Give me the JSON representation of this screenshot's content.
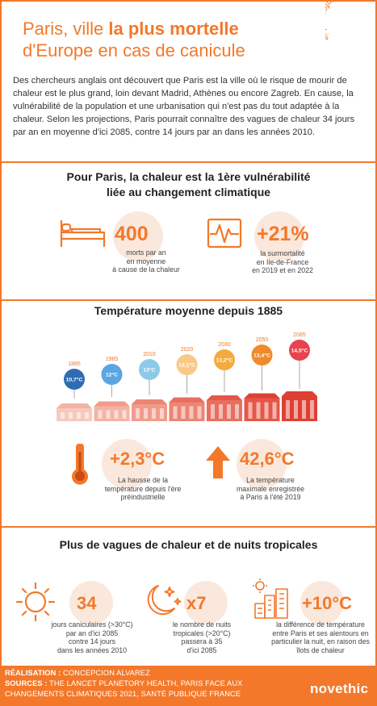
{
  "header": {
    "title_part1": "Paris, ville ",
    "title_bold": "la plus mortelle",
    "title_part2": "d'Europe en cas de canicule",
    "tag": "infographie",
    "intro": "Des chercheurs anglais ont découvert que Paris est la ville où le risque de mourir de chaleur est le plus grand, loin devant Madrid, Athènes ou encore Zagreb. En cause, la vulnérabilité de la population et une urbanisation qui n'est pas du tout adaptée à la chaleur. Selon les projections, Paris pourrait connaître des vagues de chaleur 34 jours par an en moyenne d'ici 2085, contre 14 jours par an dans les années 2010."
  },
  "section1": {
    "heading_line1": "Pour Paris, la chaleur est la 1ère vulnérabilité",
    "heading_line2": "liée au changement climatique",
    "stat1": {
      "value": "400",
      "caption": [
        "morts par an",
        "en moyenne",
        "à cause de la chaleur"
      ],
      "icon": "hospital-bed-icon"
    },
    "stat2": {
      "value": "+21%",
      "caption": [
        "la surmortalité",
        "en Ile-de-France",
        "en 2019 et en 2022"
      ],
      "icon": "heart-monitor-icon"
    }
  },
  "section2": {
    "heading": "Température moyenne depuis 1885",
    "timeline": [
      {
        "year": "1885",
        "temp": "10,7°C",
        "color": "#2e6db3"
      },
      {
        "year": "1985",
        "temp": "12°C",
        "color": "#5aa6e0"
      },
      {
        "year": "2010",
        "temp": "13°C",
        "color": "#8ccbe8"
      },
      {
        "year": "2020",
        "temp": "13,1°C",
        "color": "#f9c98a"
      },
      {
        "year": "2030",
        "temp": "13,2°C",
        "color": "#f5aa3f"
      },
      {
        "year": "2050",
        "temp": "13,4°C",
        "color": "#f08a2a"
      },
      {
        "year": "2085",
        "temp": "14,5°C",
        "color": "#e8424e"
      }
    ],
    "stat1": {
      "value": "+2,3°C",
      "caption": [
        "La hausse de la",
        "température depuis l'ère",
        "préindustrielle"
      ],
      "icon": "thermometer-icon"
    },
    "stat2": {
      "value": "42,6°C",
      "caption": [
        "La température",
        "maximale enregistrée",
        "à Paris à l'été 2019"
      ],
      "icon": "up-arrow-icon"
    }
  },
  "section3": {
    "heading": "Plus de vagues de chaleur et de nuits tropicales",
    "stat1": {
      "value": "34",
      "caption": [
        "jours caniculaires (>30°C)",
        "par an d'ici 2085",
        "contre 14 jours",
        "dans les années 2010"
      ],
      "icon": "sun-icon"
    },
    "stat2": {
      "value": "x7",
      "caption": [
        "le nombre de nuits",
        "tropicales (>20°C)",
        "passera à 35",
        "d'ici 2085"
      ],
      "icon": "moon-stars-icon"
    },
    "stat3": {
      "value": "+10°C",
      "caption": [
        "la différence de température",
        "entre Paris et ses alentours en",
        "particulier la nuit, en raison des",
        "îlots de chaleur"
      ],
      "icon": "city-heat-icon"
    }
  },
  "footer": {
    "realisation_label": "RÉALISATION :",
    "realisation": "CONCEPCION ALVAREZ",
    "sources_label": "SOURCES :",
    "sources_line1": "THE LANCET PLANETORY HEALTH, PARIS FACE AUX",
    "sources_line2": "CHANGEMENTS CLIMATIQUES 2021, SANTÉ PUBLIQUE FRANCE",
    "logo": "novethic"
  }
}
